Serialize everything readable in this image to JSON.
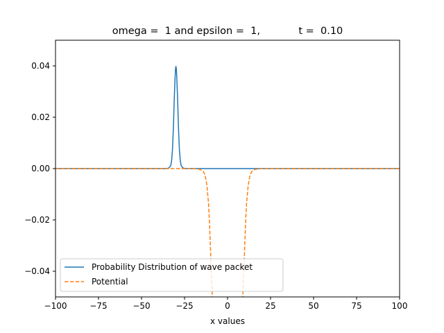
{
  "chart_data": {
    "type": "line",
    "title": "omega =  1 and epsilon =  1,            t =  0.10",
    "xlabel": "x values",
    "ylabel": "",
    "xlim": [
      -100,
      100
    ],
    "ylim": [
      -0.05,
      0.05
    ],
    "x_ticks": [
      -100,
      -75,
      -50,
      -25,
      0,
      25,
      50,
      75,
      100
    ],
    "x_tick_labels": [
      "−100",
      "−75",
      "−50",
      "−25",
      "0",
      "25",
      "50",
      "75",
      "100"
    ],
    "y_ticks": [
      -0.04,
      -0.02,
      0.0,
      0.02,
      0.04
    ],
    "y_tick_labels": [
      "−0.04",
      "−0.02",
      "0.00",
      "0.02",
      "0.04"
    ],
    "grid": false,
    "legend_position": "lower-left",
    "series": [
      {
        "name": "Probability Distribution of wave packet",
        "color": "#1f77b4",
        "dash": "solid",
        "x": [
          -100,
          -36,
          -35,
          -34,
          -33,
          -32.5,
          -32,
          -31.5,
          -31,
          -30.5,
          -30.25,
          -30,
          -29.75,
          -29.5,
          -29,
          -28.5,
          -28,
          -27.5,
          -27,
          -26,
          -25,
          -24,
          100
        ],
        "y": [
          0,
          0,
          5e-05,
          0.0003,
          0.0012,
          0.0032,
          0.0075,
          0.0155,
          0.0265,
          0.0355,
          0.0388,
          0.0398,
          0.0388,
          0.0355,
          0.0265,
          0.0155,
          0.0075,
          0.0032,
          0.0012,
          0.0003,
          5e-05,
          0,
          0
        ]
      },
      {
        "name": "Potential",
        "color": "#ff7f0e",
        "dash": "dashed",
        "x": [
          -100,
          -20,
          -16,
          -14,
          -13,
          -12,
          -11,
          -10.5,
          -10,
          -9.5,
          -9,
          -8.8,
          8.8,
          9,
          9.5,
          10,
          10.5,
          11,
          12,
          13,
          14,
          16,
          20,
          100
        ],
        "y": [
          0,
          0,
          -0.0003,
          -0.0012,
          -0.0028,
          -0.0065,
          -0.014,
          -0.021,
          -0.03,
          -0.039,
          -0.047,
          -0.052,
          -0.052,
          -0.047,
          -0.039,
          -0.03,
          -0.021,
          -0.014,
          -0.0065,
          -0.0028,
          -0.0012,
          -0.0003,
          0,
          0
        ]
      }
    ]
  }
}
